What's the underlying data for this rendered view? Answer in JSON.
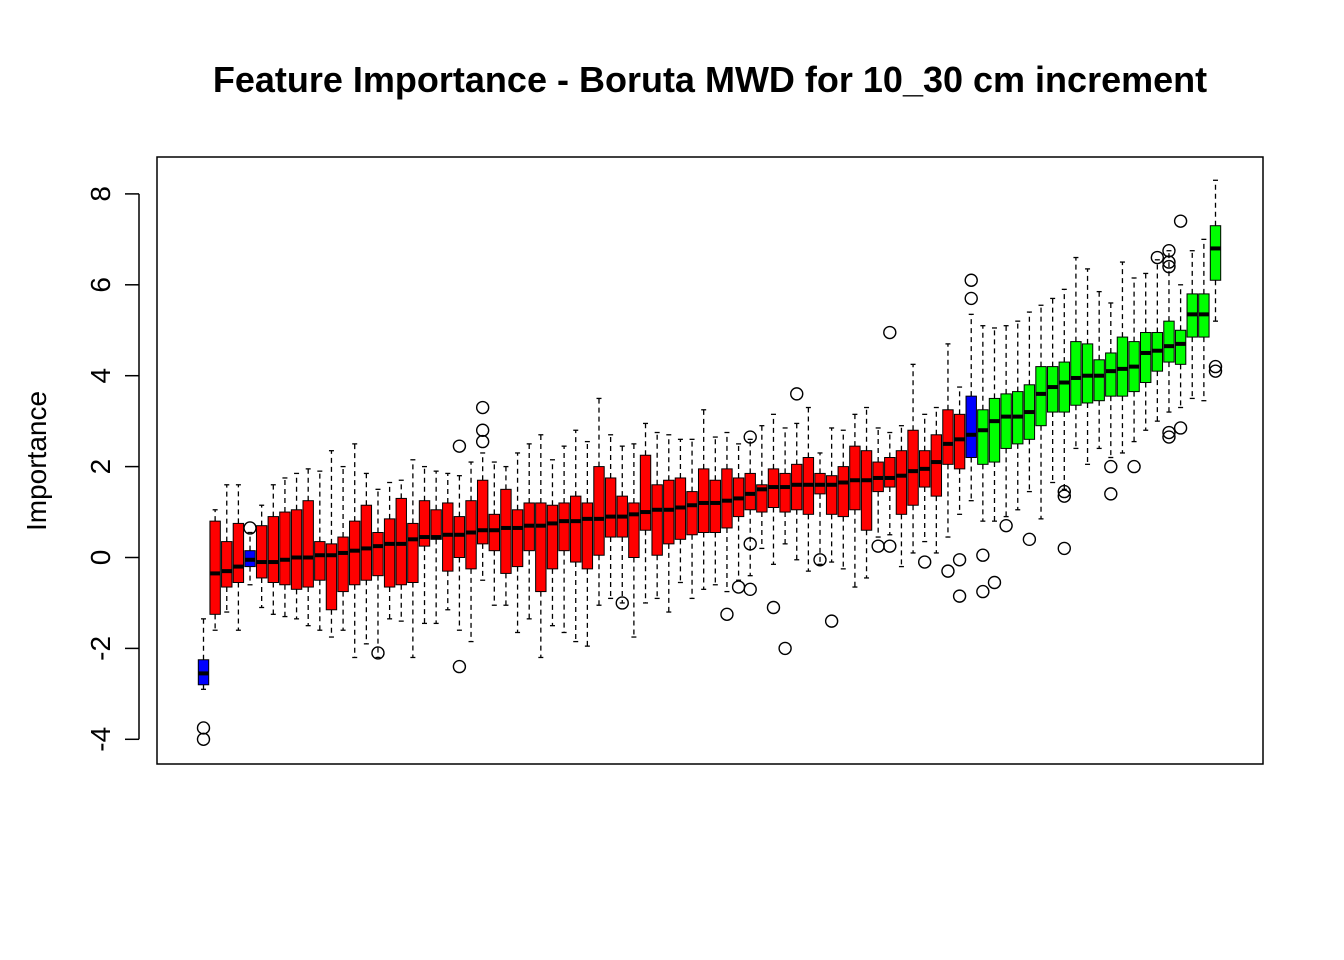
{
  "chart_data": {
    "type": "boxplot",
    "title": "Feature Importance - Boruta MWD for 10_30 cm increment",
    "xlabel": "",
    "ylabel": "Importance",
    "ylim": [
      -4.4,
      9.0
    ],
    "yticks": [
      -4,
      -2,
      0,
      2,
      4,
      6,
      8
    ],
    "ytick_labels": [
      "-4",
      "-2",
      "0",
      "2",
      "4",
      "6",
      "8"
    ],
    "grid": false,
    "colors": {
      "Shadow": "#0000ff",
      "Rejected": "#ff0000",
      "Confirmed": "#00ff00"
    },
    "boxes": [
      {
        "status": "Shadow",
        "min": -2.9,
        "q1": -2.8,
        "median": -2.55,
        "q3": -2.25,
        "max": -1.35,
        "outliers": [
          -3.75,
          -4.0
        ]
      },
      {
        "status": "Rejected",
        "min": -1.6,
        "q1": -1.25,
        "median": -0.35,
        "q3": 0.8,
        "max": 1.05,
        "outliers": []
      },
      {
        "status": "Rejected",
        "min": -1.2,
        "q1": -0.65,
        "median": -0.3,
        "q3": 0.35,
        "max": 1.6,
        "outliers": []
      },
      {
        "status": "Rejected",
        "min": -1.6,
        "q1": -0.55,
        "median": -0.2,
        "q3": 0.75,
        "max": 1.6,
        "outliers": []
      },
      {
        "status": "Shadow",
        "min": -0.6,
        "q1": -0.2,
        "median": -0.05,
        "q3": 0.15,
        "max": 0.55,
        "outliers": [
          0.65
        ]
      },
      {
        "status": "Rejected",
        "min": -1.1,
        "q1": -0.45,
        "median": -0.1,
        "q3": 0.7,
        "max": 1.15,
        "outliers": []
      },
      {
        "status": "Rejected",
        "min": -1.25,
        "q1": -0.55,
        "median": -0.1,
        "q3": 0.9,
        "max": 1.6,
        "outliers": []
      },
      {
        "status": "Rejected",
        "min": -1.3,
        "q1": -0.6,
        "median": -0.05,
        "q3": 1.0,
        "max": 1.75,
        "outliers": []
      },
      {
        "status": "Rejected",
        "min": -1.35,
        "q1": -0.7,
        "median": 0.0,
        "q3": 1.05,
        "max": 1.85,
        "outliers": []
      },
      {
        "status": "Rejected",
        "min": -1.5,
        "q1": -0.65,
        "median": 0.0,
        "q3": 1.25,
        "max": 1.95,
        "outliers": []
      },
      {
        "status": "Rejected",
        "min": -1.6,
        "q1": -0.5,
        "median": 0.05,
        "q3": 0.35,
        "max": 1.9,
        "outliers": []
      },
      {
        "status": "Rejected",
        "min": -1.75,
        "q1": -1.15,
        "median": 0.05,
        "q3": 0.3,
        "max": 2.35,
        "outliers": []
      },
      {
        "status": "Rejected",
        "min": -1.6,
        "q1": -0.75,
        "median": 0.1,
        "q3": 0.45,
        "max": 2.0,
        "outliers": []
      },
      {
        "status": "Rejected",
        "min": -2.2,
        "q1": -0.6,
        "median": 0.15,
        "q3": 0.8,
        "max": 2.5,
        "outliers": []
      },
      {
        "status": "Rejected",
        "min": -1.9,
        "q1": -0.5,
        "median": 0.2,
        "q3": 1.15,
        "max": 1.85,
        "outliers": []
      },
      {
        "status": "Rejected",
        "min": -2.2,
        "q1": -0.4,
        "median": 0.25,
        "q3": 0.55,
        "max": 1.5,
        "outliers": [
          -2.1
        ]
      },
      {
        "status": "Rejected",
        "min": -1.35,
        "q1": -0.65,
        "median": 0.3,
        "q3": 0.85,
        "max": 1.65,
        "outliers": []
      },
      {
        "status": "Rejected",
        "min": -1.4,
        "q1": -0.6,
        "median": 0.3,
        "q3": 1.3,
        "max": 1.7,
        "outliers": []
      },
      {
        "status": "Rejected",
        "min": -2.2,
        "q1": -0.55,
        "median": 0.4,
        "q3": 0.75,
        "max": 2.15,
        "outliers": []
      },
      {
        "status": "Rejected",
        "min": -1.45,
        "q1": 0.25,
        "median": 0.45,
        "q3": 1.25,
        "max": 2.0,
        "outliers": []
      },
      {
        "status": "Rejected",
        "min": -1.45,
        "q1": 0.4,
        "median": 0.45,
        "q3": 1.05,
        "max": 1.9,
        "outliers": []
      },
      {
        "status": "Rejected",
        "min": -1.15,
        "q1": -0.3,
        "median": 0.5,
        "q3": 1.2,
        "max": 1.85,
        "outliers": []
      },
      {
        "status": "Rejected",
        "min": -1.6,
        "q1": 0.0,
        "median": 0.5,
        "q3": 0.9,
        "max": 1.8,
        "outliers": [
          2.45,
          -2.4
        ]
      },
      {
        "status": "Rejected",
        "min": -1.85,
        "q1": -0.25,
        "median": 0.55,
        "q3": 1.25,
        "max": 2.1,
        "outliers": []
      },
      {
        "status": "Rejected",
        "min": -0.5,
        "q1": 0.3,
        "median": 0.6,
        "q3": 1.7,
        "max": 2.3,
        "outliers": [
          3.3,
          2.8,
          2.55
        ]
      },
      {
        "status": "Rejected",
        "min": -1.05,
        "q1": 0.15,
        "median": 0.6,
        "q3": 0.95,
        "max": 2.1,
        "outliers": []
      },
      {
        "status": "Rejected",
        "min": -1.05,
        "q1": -0.35,
        "median": 0.65,
        "q3": 1.5,
        "max": 2.0,
        "outliers": []
      },
      {
        "status": "Rejected",
        "min": -1.65,
        "q1": -0.2,
        "median": 0.65,
        "q3": 1.05,
        "max": 2.3,
        "outliers": []
      },
      {
        "status": "Rejected",
        "min": -1.35,
        "q1": 0.15,
        "median": 0.7,
        "q3": 1.2,
        "max": 2.5,
        "outliers": []
      },
      {
        "status": "Rejected",
        "min": -2.2,
        "q1": -0.75,
        "median": 0.7,
        "q3": 1.2,
        "max": 2.7,
        "outliers": []
      },
      {
        "status": "Rejected",
        "min": -1.5,
        "q1": -0.25,
        "median": 0.75,
        "q3": 1.15,
        "max": 2.15,
        "outliers": []
      },
      {
        "status": "Rejected",
        "min": -1.65,
        "q1": 0.15,
        "median": 0.8,
        "q3": 1.2,
        "max": 2.45,
        "outliers": []
      },
      {
        "status": "Rejected",
        "min": -1.85,
        "q1": -0.1,
        "median": 0.8,
        "q3": 1.35,
        "max": 2.8,
        "outliers": []
      },
      {
        "status": "Rejected",
        "min": -1.95,
        "q1": -0.25,
        "median": 0.85,
        "q3": 1.2,
        "max": 2.55,
        "outliers": []
      },
      {
        "status": "Rejected",
        "min": -1.05,
        "q1": 0.05,
        "median": 0.85,
        "q3": 2.0,
        "max": 3.5,
        "outliers": []
      },
      {
        "status": "Rejected",
        "min": -0.9,
        "q1": 0.45,
        "median": 0.9,
        "q3": 1.75,
        "max": 2.7,
        "outliers": []
      },
      {
        "status": "Rejected",
        "min": -1.0,
        "q1": 0.45,
        "median": 0.9,
        "q3": 1.35,
        "max": 2.45,
        "outliers": [
          -1.0
        ]
      },
      {
        "status": "Rejected",
        "min": -1.75,
        "q1": 0.0,
        "median": 0.95,
        "q3": 1.2,
        "max": 2.5,
        "outliers": []
      },
      {
        "status": "Rejected",
        "min": -1.0,
        "q1": 0.6,
        "median": 1.0,
        "q3": 2.25,
        "max": 2.95,
        "outliers": []
      },
      {
        "status": "Rejected",
        "min": -0.9,
        "q1": 0.05,
        "median": 1.05,
        "q3": 1.6,
        "max": 2.75,
        "outliers": []
      },
      {
        "status": "Rejected",
        "min": -1.2,
        "q1": 0.3,
        "median": 1.05,
        "q3": 1.7,
        "max": 2.7,
        "outliers": []
      },
      {
        "status": "Rejected",
        "min": -0.55,
        "q1": 0.4,
        "median": 1.1,
        "q3": 1.75,
        "max": 2.6,
        "outliers": []
      },
      {
        "status": "Rejected",
        "min": -0.9,
        "q1": 0.5,
        "median": 1.15,
        "q3": 1.45,
        "max": 2.6,
        "outliers": []
      },
      {
        "status": "Rejected",
        "min": -0.7,
        "q1": 0.55,
        "median": 1.2,
        "q3": 1.95,
        "max": 3.25,
        "outliers": []
      },
      {
        "status": "Rejected",
        "min": -0.6,
        "q1": 0.55,
        "median": 1.2,
        "q3": 1.7,
        "max": 2.65,
        "outliers": []
      },
      {
        "status": "Rejected",
        "min": -0.75,
        "q1": 0.65,
        "median": 1.25,
        "q3": 1.95,
        "max": 2.75,
        "outliers": [
          -1.25
        ]
      },
      {
        "status": "Rejected",
        "min": -0.5,
        "q1": 0.9,
        "median": 1.3,
        "q3": 1.75,
        "max": 2.5,
        "outliers": [
          -0.65
        ]
      },
      {
        "status": "Rejected",
        "min": -0.4,
        "q1": 1.05,
        "median": 1.4,
        "q3": 1.85,
        "max": 2.6,
        "outliers": [
          -0.7,
          2.65,
          0.3
        ]
      },
      {
        "status": "Rejected",
        "min": 0.2,
        "q1": 1.0,
        "median": 1.5,
        "q3": 1.6,
        "max": 2.9,
        "outliers": []
      },
      {
        "status": "Rejected",
        "min": -0.15,
        "q1": 1.1,
        "median": 1.55,
        "q3": 1.95,
        "max": 3.15,
        "outliers": [
          -1.1
        ]
      },
      {
        "status": "Rejected",
        "min": 0.3,
        "q1": 1.0,
        "median": 1.55,
        "q3": 1.85,
        "max": 2.85,
        "outliers": [
          -2.0
        ]
      },
      {
        "status": "Rejected",
        "min": -0.05,
        "q1": 1.05,
        "median": 1.6,
        "q3": 2.05,
        "max": 2.95,
        "outliers": [
          3.6
        ]
      },
      {
        "status": "Rejected",
        "min": -0.3,
        "q1": 0.95,
        "median": 1.6,
        "q3": 2.2,
        "max": 3.3,
        "outliers": []
      },
      {
        "status": "Rejected",
        "min": -0.15,
        "q1": 1.4,
        "median": 1.6,
        "q3": 1.85,
        "max": 2.3,
        "outliers": [
          -0.05
        ]
      },
      {
        "status": "Rejected",
        "min": -0.1,
        "q1": 0.95,
        "median": 1.6,
        "q3": 1.8,
        "max": 2.85,
        "outliers": [
          -1.4
        ]
      },
      {
        "status": "Rejected",
        "min": -0.25,
        "q1": 0.9,
        "median": 1.65,
        "q3": 2.0,
        "max": 2.8,
        "outliers": []
      },
      {
        "status": "Rejected",
        "min": -0.65,
        "q1": 1.05,
        "median": 1.7,
        "q3": 2.45,
        "max": 3.15,
        "outliers": []
      },
      {
        "status": "Rejected",
        "min": -0.45,
        "q1": 0.6,
        "median": 1.7,
        "q3": 2.35,
        "max": 3.3,
        "outliers": []
      },
      {
        "status": "Rejected",
        "min": 0.45,
        "q1": 1.45,
        "median": 1.75,
        "q3": 2.1,
        "max": 2.85,
        "outliers": [
          0.25
        ]
      },
      {
        "status": "Rejected",
        "min": 0.5,
        "q1": 1.55,
        "median": 1.75,
        "q3": 2.2,
        "max": 2.75,
        "outliers": [
          0.25,
          4.95
        ]
      },
      {
        "status": "Rejected",
        "min": -0.2,
        "q1": 0.95,
        "median": 1.8,
        "q3": 2.35,
        "max": 2.9,
        "outliers": []
      },
      {
        "status": "Rejected",
        "min": 0.1,
        "q1": 1.15,
        "median": 1.9,
        "q3": 2.8,
        "max": 4.25,
        "outliers": []
      },
      {
        "status": "Rejected",
        "min": 0.35,
        "q1": 1.55,
        "median": 1.95,
        "q3": 2.35,
        "max": 3.15,
        "outliers": [
          -0.1
        ]
      },
      {
        "status": "Rejected",
        "min": 0.1,
        "q1": 1.35,
        "median": 2.1,
        "q3": 2.7,
        "max": 3.3,
        "outliers": []
      },
      {
        "status": "Rejected",
        "min": 0.45,
        "q1": 2.05,
        "median": 2.5,
        "q3": 3.25,
        "max": 4.7,
        "outliers": [
          -0.3
        ]
      },
      {
        "status": "Rejected",
        "min": 0.95,
        "q1": 1.95,
        "median": 2.6,
        "q3": 3.15,
        "max": 3.75,
        "outliers": [
          -0.05,
          -0.85
        ]
      },
      {
        "status": "Shadow",
        "min": 1.25,
        "q1": 2.2,
        "median": 2.7,
        "q3": 3.55,
        "max": 5.35,
        "outliers": [
          6.1,
          5.7
        ]
      },
      {
        "status": "Confirmed",
        "min": 0.8,
        "q1": 2.05,
        "median": 2.8,
        "q3": 3.25,
        "max": 5.1,
        "outliers": [
          0.05,
          -0.75
        ]
      },
      {
        "status": "Confirmed",
        "min": 0.8,
        "q1": 2.1,
        "median": 3.0,
        "q3": 3.5,
        "max": 5.05,
        "outliers": [
          -0.55
        ]
      },
      {
        "status": "Confirmed",
        "min": 0.9,
        "q1": 2.4,
        "median": 3.1,
        "q3": 3.6,
        "max": 5.1,
        "outliers": [
          0.7
        ]
      },
      {
        "status": "Confirmed",
        "min": 1.05,
        "q1": 2.5,
        "median": 3.1,
        "q3": 3.65,
        "max": 5.2,
        "outliers": []
      },
      {
        "status": "Confirmed",
        "min": 1.45,
        "q1": 2.6,
        "median": 3.2,
        "q3": 3.8,
        "max": 5.4,
        "outliers": [
          0.4
        ]
      },
      {
        "status": "Confirmed",
        "min": 0.85,
        "q1": 2.9,
        "median": 3.6,
        "q3": 4.2,
        "max": 5.55,
        "outliers": []
      },
      {
        "status": "Confirmed",
        "min": 1.65,
        "q1": 3.2,
        "median": 3.75,
        "q3": 4.2,
        "max": 5.7,
        "outliers": []
      },
      {
        "status": "Confirmed",
        "min": 1.5,
        "q1": 3.2,
        "median": 3.85,
        "q3": 4.3,
        "max": 5.9,
        "outliers": [
          1.35,
          1.45,
          0.2
        ]
      },
      {
        "status": "Confirmed",
        "min": 2.4,
        "q1": 3.35,
        "median": 3.95,
        "q3": 4.75,
        "max": 6.6,
        "outliers": []
      },
      {
        "status": "Confirmed",
        "min": 2.05,
        "q1": 3.4,
        "median": 4.0,
        "q3": 4.7,
        "max": 6.35,
        "outliers": []
      },
      {
        "status": "Confirmed",
        "min": 2.4,
        "q1": 3.45,
        "median": 4.0,
        "q3": 4.35,
        "max": 5.85,
        "outliers": []
      },
      {
        "status": "Confirmed",
        "min": 2.2,
        "q1": 3.55,
        "median": 4.1,
        "q3": 4.5,
        "max": 5.6,
        "outliers": [
          1.4,
          2.0
        ]
      },
      {
        "status": "Confirmed",
        "min": 2.3,
        "q1": 3.55,
        "median": 4.15,
        "q3": 4.85,
        "max": 6.5,
        "outliers": []
      },
      {
        "status": "Confirmed",
        "min": 2.55,
        "q1": 3.65,
        "median": 4.2,
        "q3": 4.75,
        "max": 6.15,
        "outliers": [
          2.0
        ]
      },
      {
        "status": "Confirmed",
        "min": 2.8,
        "q1": 3.85,
        "median": 4.5,
        "q3": 4.95,
        "max": 6.25,
        "outliers": []
      },
      {
        "status": "Confirmed",
        "min": 3.0,
        "q1": 4.1,
        "median": 4.55,
        "q3": 4.95,
        "max": 6.55,
        "outliers": [
          6.6
        ]
      },
      {
        "status": "Confirmed",
        "min": 3.2,
        "q1": 4.3,
        "median": 4.65,
        "q3": 5.2,
        "max": 6.75,
        "outliers": [
          6.75,
          6.4,
          6.5,
          2.65,
          2.75
        ]
      },
      {
        "status": "Confirmed",
        "min": 3.3,
        "q1": 4.25,
        "median": 4.7,
        "q3": 5.0,
        "max": 6.0,
        "outliers": [
          2.85,
          7.4
        ]
      },
      {
        "status": "Confirmed",
        "min": 3.5,
        "q1": 4.85,
        "median": 5.35,
        "q3": 5.8,
        "max": 6.75,
        "outliers": []
      },
      {
        "status": "Confirmed",
        "min": 3.45,
        "q1": 4.85,
        "median": 5.35,
        "q3": 5.8,
        "max": 7.0,
        "outliers": []
      },
      {
        "status": "Confirmed",
        "min": 5.2,
        "q1": 6.1,
        "median": 6.8,
        "q3": 7.3,
        "max": 8.3,
        "outliers": [
          4.2,
          4.1
        ]
      }
    ]
  }
}
